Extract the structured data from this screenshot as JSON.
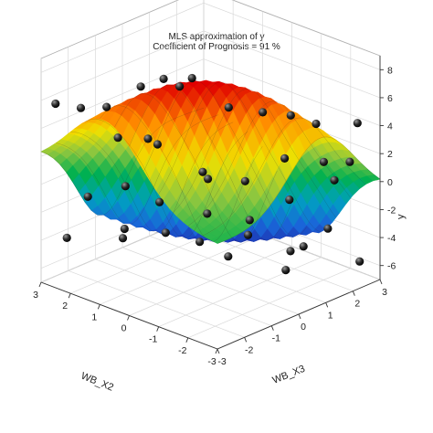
{
  "chart_data": {
    "type": "surface3d",
    "title": "MLS approximation of y",
    "subtitle": "Coefficient of Prognosis =     91 %",
    "xlabel": "WB_X2",
    "ylabel": "WB_X3",
    "zlabel": "y",
    "xlim": [
      -3,
      3
    ],
    "ylim": [
      -3,
      3
    ],
    "zlim": [
      -7,
      9
    ],
    "x_ticks": [
      "3",
      "2",
      "1",
      "0",
      "-1",
      "-2",
      "-3"
    ],
    "y_ticks": [
      "-3",
      "-2",
      "-1",
      "0",
      "1",
      "2",
      "3"
    ],
    "z_ticks": [
      "8",
      "6",
      "4",
      "2",
      "0",
      "-2",
      "-4",
      "-6"
    ],
    "grid": true,
    "colormap": [
      "#1e1ea0",
      "#1a66d9",
      "#00a0c0",
      "#00b050",
      "#8cc63f",
      "#f0e000",
      "#ff8c00",
      "#e00000"
    ],
    "support_points": [
      [
        2.6,
        -2.9,
        6.0
      ],
      [
        2.2,
        -2.4,
        5.6
      ],
      [
        1.6,
        -2.1,
        5.9
      ],
      [
        0.9,
        -1.6,
        7.5
      ],
      [
        0.4,
        -1.3,
        8.2
      ],
      [
        -0.2,
        -0.9,
        8.4
      ],
      [
        0.5,
        -0.6,
        7.0
      ],
      [
        -0.8,
        -0.2,
        6.2
      ],
      [
        -1.5,
        0.3,
        6.0
      ],
      [
        -1.9,
        0.9,
        5.6
      ],
      [
        -2.3,
        1.4,
        4.9
      ],
      [
        -2.8,
        2.1,
        2.0
      ],
      [
        -2.6,
        2.6,
        4.2
      ],
      [
        1.4,
        -1.9,
        3.7
      ],
      [
        0.7,
        -1.2,
        3.2
      ],
      [
        -0.1,
        -0.4,
        1.2
      ],
      [
        -0.9,
        0.3,
        0.6
      ],
      [
        -1.6,
        1.0,
        2.2
      ],
      [
        -2.1,
        1.9,
        1.6
      ],
      [
        2.7,
        -1.6,
        -1.8
      ],
      [
        2.4,
        -2.7,
        -3.6
      ],
      [
        1.7,
        -1.3,
        -0.5
      ],
      [
        1.0,
        -0.8,
        -1.5
      ],
      [
        0.3,
        0.2,
        -2.6
      ],
      [
        -0.5,
        0.9,
        -3.0
      ],
      [
        -1.3,
        1.5,
        -1.4
      ],
      [
        -2.0,
        2.4,
        -0.2
      ],
      [
        2.8,
        -0.2,
        -6.0
      ],
      [
        1.9,
        0.4,
        -5.4
      ],
      [
        1.2,
        0.9,
        -5.9
      ],
      [
        0.2,
        1.6,
        -5.2
      ],
      [
        -0.6,
        2.3,
        -6.3
      ],
      [
        -1.5,
        2.7,
        -4.3
      ],
      [
        -2.4,
        2.9,
        -6.1
      ],
      [
        0.6,
        1.3,
        -6.8
      ],
      [
        -0.9,
        1.8,
        -7.0
      ],
      [
        2.1,
        -0.9,
        -4.2
      ],
      [
        -2.7,
        0.5,
        -2.8
      ],
      [
        -1.2,
        -1.4,
        2.4
      ],
      [
        0.1,
        -2.2,
        4.9
      ]
    ]
  }
}
